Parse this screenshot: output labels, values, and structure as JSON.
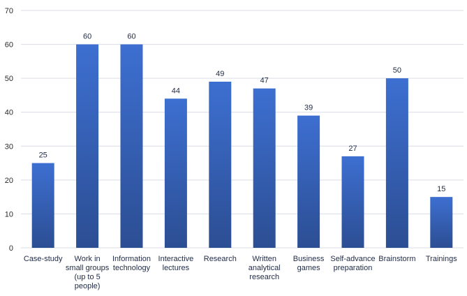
{
  "chart_data": {
    "type": "bar",
    "title": "",
    "xlabel": "",
    "ylabel": "",
    "categories": [
      "Case-study",
      "Work in small groups (up to 5 people)",
      "Information technology",
      "Interactive lectures",
      "Research",
      "Written analytical research",
      "Business games",
      "Self-advance preparation",
      "Brainstorm",
      "Trainings"
    ],
    "category_label_lines": [
      [
        "Case-study"
      ],
      [
        "Work in",
        "small groups",
        "(up to 5",
        "people)"
      ],
      [
        "Information",
        "technology"
      ],
      [
        "Interactive",
        "lectures"
      ],
      [
        "Research"
      ],
      [
        "Written",
        "analytical",
        "research"
      ],
      [
        "Business",
        "games"
      ],
      [
        "Self-advance",
        "preparation"
      ],
      [
        "Brainstorm"
      ],
      [
        "Trainings"
      ]
    ],
    "values": [
      25,
      60,
      60,
      44,
      49,
      47,
      39,
      27,
      50,
      15
    ],
    "data_labels": [
      "25",
      "60",
      "60",
      "44",
      "49",
      "47",
      "39",
      "27",
      "50",
      "15"
    ],
    "ylim": [
      0,
      70
    ],
    "yticks": [
      0,
      10,
      20,
      30,
      40,
      50,
      60,
      70
    ],
    "ytick_labels": [
      "0",
      "10",
      "20",
      "30",
      "40",
      "50",
      "60",
      "70"
    ],
    "grid": true,
    "legend": "none",
    "colors": {
      "bar_top": "#3d6fd1",
      "bar_bottom": "#2c4e93",
      "grid": "#d9dde6",
      "axis": "#d9dde6"
    }
  }
}
